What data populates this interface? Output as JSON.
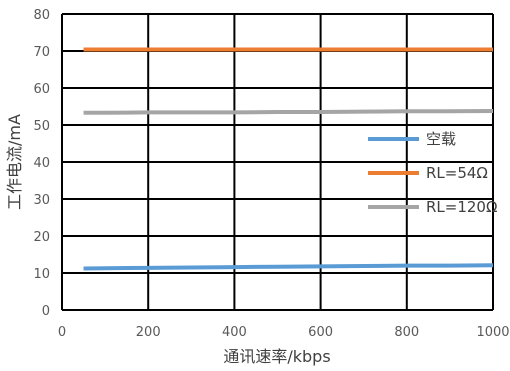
{
  "chart_data": {
    "type": "line",
    "title": "",
    "xlabel": "通讯速率/kbps",
    "ylabel": "工作电流/mA",
    "xlim": [
      0,
      1000
    ],
    "ylim": [
      0,
      80
    ],
    "xticks": [
      0,
      200,
      400,
      600,
      800,
      1000
    ],
    "xtick_labels": [
      "0",
      "200",
      "400",
      "600",
      "800",
      "1000"
    ],
    "yticks": [
      0,
      10,
      20,
      30,
      40,
      50,
      60,
      70,
      80
    ],
    "ytick_labels": [
      "0",
      "10",
      "20",
      "30",
      "40",
      "50",
      "60",
      "70",
      "80"
    ],
    "grid": true,
    "legend_position": "right",
    "series": [
      {
        "name": "空载",
        "color": "#5B9BD5",
        "x": [
          50,
          100,
          200,
          300,
          400,
          500,
          600,
          700,
          800,
          900,
          1000
        ],
        "y": [
          11.2,
          11.3,
          11.4,
          11.5,
          11.6,
          11.7,
          11.8,
          11.9,
          12.0,
          12.0,
          12.1
        ]
      },
      {
        "name": "RL=54Ω",
        "color": "#ED7D31",
        "x": [
          50,
          100,
          200,
          300,
          400,
          500,
          600,
          700,
          800,
          900,
          1000
        ],
        "y": [
          70.4,
          70.4,
          70.4,
          70.4,
          70.4,
          70.4,
          70.4,
          70.4,
          70.4,
          70.4,
          70.4
        ]
      },
      {
        "name": "RL=120Ω",
        "color": "#A5A5A5",
        "x": [
          50,
          100,
          200,
          300,
          400,
          500,
          600,
          700,
          800,
          900,
          1000
        ],
        "y": [
          53.3,
          53.3,
          53.4,
          53.4,
          53.4,
          53.5,
          53.5,
          53.6,
          53.7,
          53.7,
          53.8
        ]
      }
    ]
  }
}
